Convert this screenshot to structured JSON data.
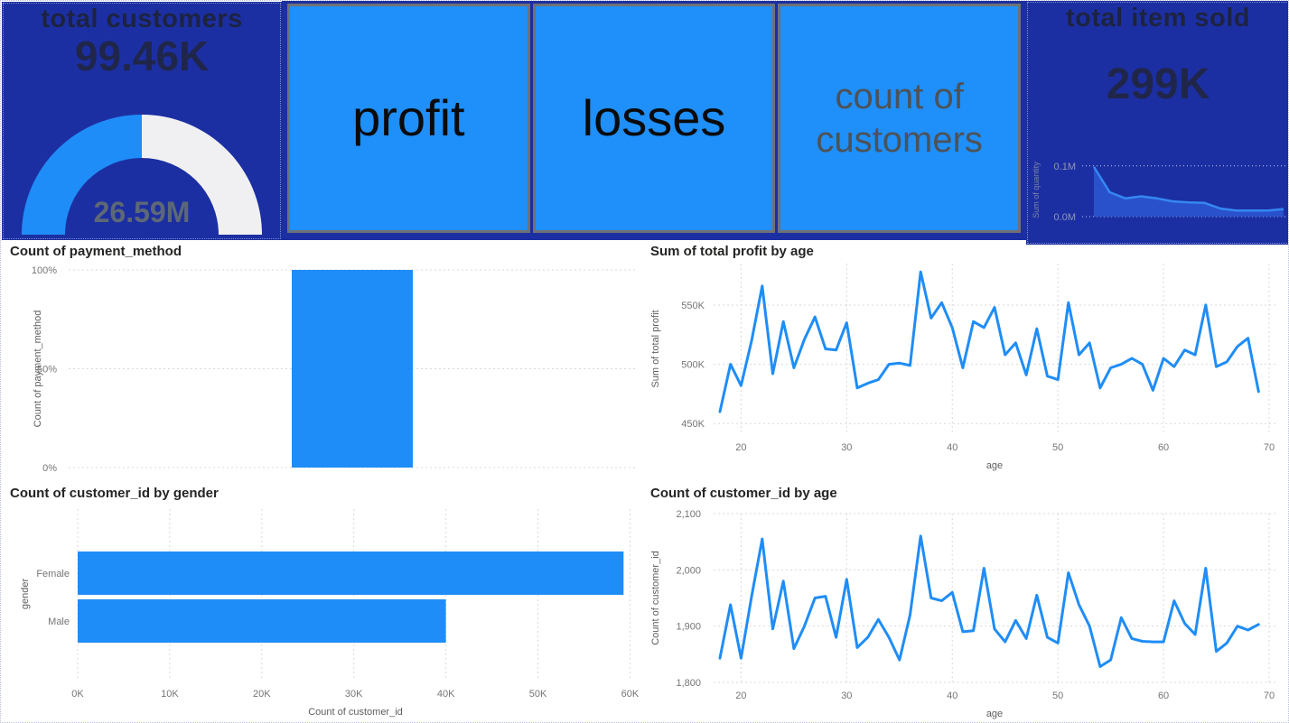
{
  "colors": {
    "navy": "#1c2fa2",
    "accent": "#1f8df7",
    "gauge_rest": "#f0f0f2",
    "spark_fill": "#2b55cf",
    "spark_line": "#3488f2"
  },
  "nav": {
    "buttons": [
      {
        "label": "profit"
      },
      {
        "label": "losses"
      },
      {
        "label": "count of customers"
      }
    ]
  },
  "chart_data": [
    {
      "type": "gauge",
      "title": "total customers",
      "kpi_value": "99.46K",
      "callout": "26.59M",
      "fill_fraction": 0.5
    },
    {
      "type": "area",
      "kpi_title": "total item sold",
      "kpi_value": "299K",
      "ylabel": "Sum of quantity",
      "values": [
        98000,
        48000,
        36000,
        40000,
        36000,
        30000,
        28000,
        27000,
        16000,
        12000,
        12000,
        12000,
        15000
      ],
      "ylim": [
        0,
        105000
      ],
      "y_ticks": {
        "values": [
          100000,
          0
        ],
        "labels": [
          "0.1M",
          "0.0M"
        ]
      }
    },
    {
      "type": "bar",
      "title": "Count of payment_method",
      "ylabel": "Count of payment_method",
      "categories": [
        ""
      ],
      "values_pct": [
        100
      ],
      "ylim": [
        0,
        100
      ],
      "y_ticks": {
        "values": [
          100,
          50,
          0
        ],
        "labels": [
          "100%",
          "50%",
          "0%"
        ]
      }
    },
    {
      "type": "line",
      "title": "Sum of total profit by age",
      "xlabel": "age",
      "ylabel": "Sum of total profit",
      "xlim": [
        17.4,
        70.6
      ],
      "ylim": [
        441000,
        585000
      ],
      "x_ticks": {
        "values": [
          20,
          30,
          40,
          50,
          60,
          70
        ],
        "labels": [
          "20",
          "30",
          "40",
          "50",
          "60",
          "70"
        ]
      },
      "y_ticks": {
        "values": [
          450000,
          500000,
          550000
        ],
        "labels": [
          "450K",
          "500K",
          "550K"
        ]
      },
      "x": [
        18,
        19,
        20,
        21,
        22,
        23,
        24,
        25,
        26,
        27,
        28,
        29,
        30,
        31,
        32,
        33,
        34,
        35,
        36,
        37,
        38,
        39,
        40,
        41,
        42,
        43,
        44,
        45,
        46,
        47,
        48,
        49,
        50,
        51,
        52,
        53,
        54,
        55,
        56,
        57,
        58,
        59,
        60,
        61,
        62,
        63,
        64,
        65,
        66,
        67,
        68,
        69
      ],
      "values": [
        460000,
        500000,
        482000,
        520000,
        566000,
        492000,
        536000,
        497000,
        521000,
        540000,
        513000,
        512000,
        535000,
        480000,
        484000,
        487000,
        500000,
        501000,
        499000,
        578000,
        539000,
        552000,
        531000,
        497000,
        536000,
        531000,
        548000,
        508000,
        518000,
        491000,
        530000,
        490000,
        487000,
        552000,
        508000,
        518000,
        480000,
        497000,
        500000,
        505000,
        500000,
        478000,
        505000,
        498000,
        512000,
        508000,
        550000,
        498000,
        502000,
        515000,
        522000,
        477000
      ]
    },
    {
      "type": "hbar",
      "title": "Count of customer_id by gender",
      "xlabel": "Count of customer_id",
      "ylabel": "gender",
      "categories": [
        "Female",
        "Male"
      ],
      "values": [
        59300,
        40000
      ],
      "xlim": [
        0,
        60350
      ],
      "x_ticks": {
        "values": [
          0,
          10000,
          20000,
          30000,
          40000,
          50000,
          60000
        ],
        "labels": [
          "0K",
          "10K",
          "20K",
          "30K",
          "40K",
          "50K",
          "60K"
        ]
      }
    },
    {
      "type": "line",
      "title": "Count of customer_id by age",
      "xlabel": "age",
      "ylabel": "Count of customer_id",
      "xlim": [
        17.4,
        70.6
      ],
      "ylim": [
        1800,
        2100
      ],
      "x_ticks": {
        "values": [
          20,
          30,
          40,
          50,
          60,
          70
        ],
        "labels": [
          "20",
          "30",
          "40",
          "50",
          "60",
          "70"
        ]
      },
      "y_ticks": {
        "values": [
          1800,
          1900,
          2000,
          2100
        ],
        "labels": [
          "1,800",
          "1,900",
          "2,000",
          "2,100"
        ]
      },
      "x": [
        18,
        19,
        20,
        21,
        22,
        23,
        24,
        25,
        26,
        27,
        28,
        29,
        30,
        31,
        32,
        33,
        34,
        35,
        36,
        37,
        38,
        39,
        40,
        41,
        42,
        43,
        44,
        45,
        46,
        47,
        48,
        49,
        50,
        51,
        52,
        53,
        54,
        55,
        56,
        57,
        58,
        59,
        60,
        61,
        62,
        63,
        64,
        65,
        66,
        67,
        68,
        69
      ],
      "values": [
        1843,
        1938,
        1843,
        1953,
        2055,
        1895,
        1980,
        1860,
        1900,
        1950,
        1953,
        1880,
        1983,
        1862,
        1880,
        1912,
        1880,
        1840,
        1920,
        2060,
        1950,
        1945,
        1960,
        1890,
        1892,
        2003,
        1895,
        1872,
        1910,
        1878,
        1955,
        1880,
        1870,
        1995,
        1938,
        1900,
        1828,
        1840,
        1915,
        1878,
        1873,
        1872,
        1872,
        1945,
        1905,
        1885,
        2003,
        1855,
        1870,
        1900,
        1893,
        1903
      ]
    }
  ]
}
